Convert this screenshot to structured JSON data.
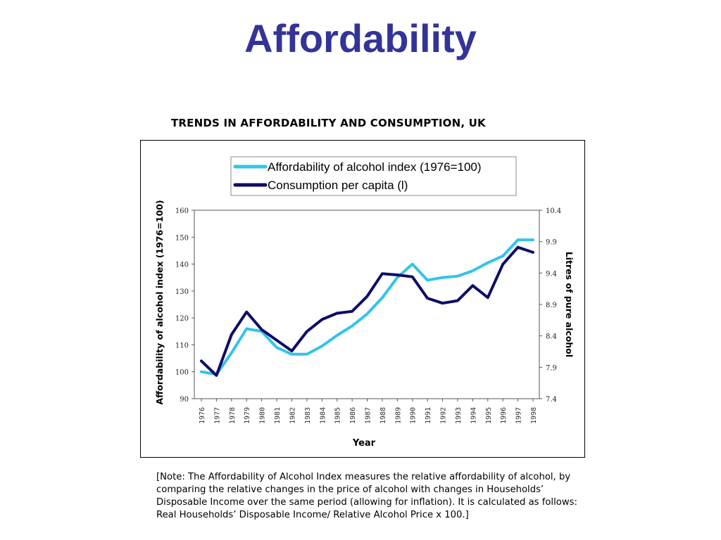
{
  "slide": {
    "title": "Affordability",
    "note": "[Note: The Affordability of Alcohol Index measures the relative affordability of alcohol, by comparing the relative changes in the price of alcohol with changes in Households’ Disposable Income over the same period (allowing for inflation). It is calculated as follows: Real Households’ Disposable Income/ Relative Alcohol Price x 100.]"
  },
  "chart_data": {
    "type": "line",
    "title": "TRENDS IN AFFORDABILITY AND CONSUMPTION, UK",
    "xlabel": "Year",
    "ylabel": "Affordability of alcohol index (1976=100)",
    "y2label": "Litres of pure alcohol",
    "ylim": [
      90,
      160
    ],
    "yticks": [
      "90",
      "100",
      "110",
      "120",
      "130",
      "140",
      "150",
      "160"
    ],
    "y2lim": [
      7.4,
      10.4
    ],
    "y2ticks": [
      "7.4",
      "7.9",
      "8.4",
      "8.9",
      "9.4",
      "9.9",
      "10.4"
    ],
    "x": [
      "1976",
      "1977",
      "1978",
      "1979",
      "1980",
      "1981",
      "1982",
      "1983",
      "1984",
      "1985",
      "1986",
      "1987",
      "1988",
      "1989",
      "1990",
      "1991",
      "1992",
      "1993",
      "1994",
      "1995",
      "1996",
      "1997",
      "1998"
    ],
    "legend_position": "top",
    "grid": false,
    "series": [
      {
        "name": "Affordability of alcohol index (1976=100)",
        "axis": "left",
        "color": "#33c4e8",
        "values": [
          100,
          99,
          107,
          116,
          115,
          109,
          106.5,
          106.5,
          109.5,
          113.5,
          117,
          121.5,
          127.5,
          135,
          140,
          134,
          135,
          135.5,
          137.5,
          140.5,
          143,
          149,
          149
        ]
      },
      {
        "name": "Consumption per capita (l)",
        "axis": "right",
        "color": "#0d0d66",
        "values": [
          8.0,
          7.77,
          8.42,
          8.78,
          8.5,
          8.33,
          8.16,
          8.47,
          8.66,
          8.76,
          8.79,
          9.03,
          9.39,
          9.37,
          9.34,
          9.0,
          8.92,
          8.96,
          9.2,
          9.01,
          9.54,
          9.81,
          9.73
        ]
      }
    ]
  }
}
